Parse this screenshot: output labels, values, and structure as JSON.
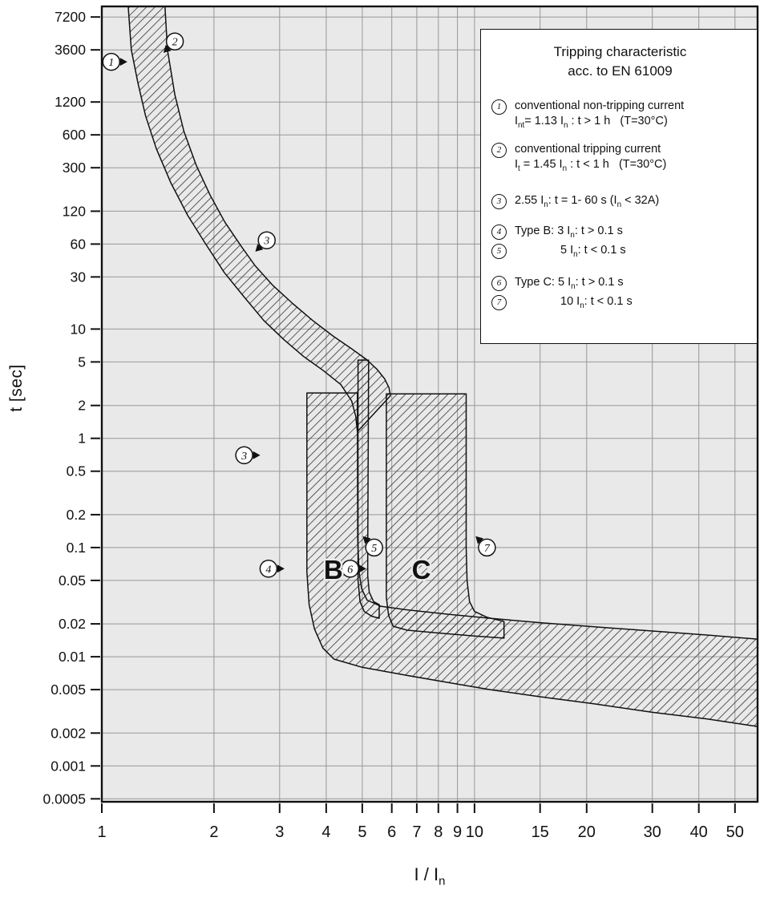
{
  "axes": {
    "y_label": "t [sec]",
    "x_label": "I / I~n~"
  },
  "legend": {
    "title_line1": "Tripping characteristic",
    "title_line2": "acc. to EN 61009",
    "items": [
      {
        "num": "1",
        "gap": 22,
        "lines": [
          "conventional non-tripping current",
          "I~nt~= 1.13 I~n~ : t > 1 h   (T=30°C)"
        ]
      },
      {
        "num": "2",
        "gap": 16,
        "lines": [
          "conventional tripping current",
          "I~t~ = 1.45 I~n~ : t < 1 h   (T=30°C)"
        ]
      },
      {
        "num": "3",
        "gap": 26,
        "lines": [
          "2.55 I~n~: t = 1- 60 s (I~n~ < 32A)"
        ]
      },
      {
        "num": "4",
        "gap": 18,
        "lines": [
          "Type B: 3 I~n~: t > 0.1 s"
        ]
      },
      {
        "num": "5",
        "gap": 4,
        "indent": true,
        "lines": [
          "5 I~n~: t < 0.1 s"
        ]
      },
      {
        "num": "6",
        "gap": 20,
        "lines": [
          "Type C: 5 I~n~: t > 0.1 s"
        ]
      },
      {
        "num": "7",
        "gap": 4,
        "indent": true,
        "lines": [
          "10 I~n~: t < 0.1 s"
        ]
      }
    ]
  },
  "chart_data": {
    "type": "area",
    "title": "Tripping characteristic acc. to EN 61009",
    "xlabel": "I / In",
    "ylabel": "t [sec]",
    "x_scale": "log",
    "y_scale": "log",
    "x_range": [
      1,
      57.5
    ],
    "y_range_top": 9000,
    "y_range_bottom": 0.00047,
    "x_ticks": [
      1,
      2,
      3,
      4,
      5,
      6,
      7,
      8,
      9,
      10,
      15,
      20,
      30,
      40,
      50
    ],
    "y_ticks": [
      7200,
      3600,
      1200,
      600,
      300,
      120,
      60,
      30,
      10,
      5,
      2,
      1,
      0.5,
      0.2,
      0.1,
      0.05,
      0.02,
      0.01,
      0.005,
      0.002,
      0.001,
      0.0005
    ],
    "colors": {
      "plot_bg": "#e9e9e9",
      "grid": "#979797",
      "frame": "#111111",
      "hatch": "#2a2a2a"
    },
    "bands": [
      {
        "name": "thermal-band",
        "points": [
          [
            1.17,
            12000
          ],
          [
            1.2,
            3600
          ],
          [
            1.25,
            1800
          ],
          [
            1.31,
            900
          ],
          [
            1.4,
            450
          ],
          [
            1.53,
            220
          ],
          [
            1.7,
            110
          ],
          [
            1.9,
            60
          ],
          [
            2.13,
            33
          ],
          [
            2.4,
            20
          ],
          [
            2.72,
            12
          ],
          [
            3.08,
            8
          ],
          [
            3.48,
            5.6
          ],
          [
            3.92,
            4.2
          ],
          [
            4.38,
            3.1
          ],
          [
            4.68,
            2.2
          ],
          [
            4.8,
            1.6
          ],
          [
            4.85,
            1.15
          ],
          [
            5.95,
            2.45
          ],
          [
            5.9,
            2.9
          ],
          [
            5.74,
            3.5
          ],
          [
            5.47,
            4.3
          ],
          [
            5.12,
            5.3
          ],
          [
            4.68,
            6.6
          ],
          [
            4.18,
            8.6
          ],
          [
            3.68,
            12
          ],
          [
            3.26,
            17
          ],
          [
            2.88,
            25
          ],
          [
            2.58,
            38
          ],
          [
            2.36,
            58
          ],
          [
            2.14,
            95
          ],
          [
            1.95,
            170
          ],
          [
            1.79,
            320
          ],
          [
            1.66,
            650
          ],
          [
            1.57,
            1400
          ],
          [
            1.5,
            3600
          ],
          [
            1.47,
            12000
          ]
        ]
      },
      {
        "name": "type-b-band",
        "points": [
          [
            3.55,
            2.6
          ],
          [
            3.55,
            0.06
          ],
          [
            3.6,
            0.03
          ],
          [
            3.72,
            0.018
          ],
          [
            3.92,
            0.012
          ],
          [
            4.2,
            0.0095
          ],
          [
            5.0,
            0.008
          ],
          [
            6.5,
            0.0068
          ],
          [
            8.5,
            0.0058
          ],
          [
            11,
            0.005
          ],
          [
            15,
            0.0043
          ],
          [
            21,
            0.0037
          ],
          [
            30,
            0.0031
          ],
          [
            42,
            0.0027
          ],
          [
            57.5,
            0.0023
          ],
          [
            57.5,
            0.0145
          ],
          [
            42,
            0.0158
          ],
          [
            30,
            0.0172
          ],
          [
            21,
            0.0188
          ],
          [
            15,
            0.0205
          ],
          [
            11,
            0.0225
          ],
          [
            8.5,
            0.0245
          ],
          [
            6.5,
            0.027
          ],
          [
            5.6,
            0.029
          ],
          [
            5.15,
            0.033
          ],
          [
            4.98,
            0.042
          ],
          [
            4.9,
            0.06
          ],
          [
            4.86,
            0.12
          ],
          [
            4.85,
            2.6
          ]
        ]
      },
      {
        "name": "five-in-limit-band",
        "points": [
          [
            4.87,
            5.2
          ],
          [
            4.87,
            0.05
          ],
          [
            4.93,
            0.032
          ],
          [
            5.06,
            0.026
          ],
          [
            5.3,
            0.0235
          ],
          [
            5.55,
            0.0225
          ],
          [
            5.55,
            0.03
          ],
          [
            5.36,
            0.032
          ],
          [
            5.22,
            0.039
          ],
          [
            5.17,
            0.055
          ],
          [
            5.17,
            0.09
          ],
          [
            5.2,
            5.2
          ]
        ]
      },
      {
        "name": "type-c-band",
        "points": [
          [
            5.8,
            2.55
          ],
          [
            5.8,
            0.035
          ],
          [
            5.88,
            0.024
          ],
          [
            6.05,
            0.019
          ],
          [
            6.6,
            0.0175
          ],
          [
            8,
            0.0165
          ],
          [
            10,
            0.0155
          ],
          [
            12,
            0.0148
          ],
          [
            12,
            0.021
          ],
          [
            10.8,
            0.023
          ],
          [
            10.0,
            0.026
          ],
          [
            9.7,
            0.032
          ],
          [
            9.55,
            0.05
          ],
          [
            9.5,
            0.1
          ],
          [
            9.5,
            2.55
          ]
        ]
      }
    ],
    "markers": [
      {
        "num": "1",
        "x": 1.06,
        "t": 2800,
        "dir": "e"
      },
      {
        "num": "2",
        "x": 1.57,
        "t": 4300,
        "dir": "sw"
      },
      {
        "num": "3",
        "x": 2.77,
        "t": 65,
        "dir": "sw"
      },
      {
        "num": "3",
        "x": 2.41,
        "t": 0.7,
        "dir": "e"
      },
      {
        "num": "4",
        "x": 2.8,
        "t": 0.064,
        "dir": "e"
      },
      {
        "num": "5",
        "x": 5.38,
        "t": 0.1,
        "dir": "nw"
      },
      {
        "num": "6",
        "x": 4.64,
        "t": 0.064,
        "dir": "e"
      },
      {
        "num": "7",
        "x": 10.8,
        "t": 0.1,
        "dir": "nw"
      }
    ],
    "curve_labels": [
      {
        "text": "B",
        "x": 4.18,
        "t": 0.062,
        "name": "type-b-label"
      },
      {
        "text": "C",
        "x": 7.2,
        "t": 0.062,
        "name": "type-c-label"
      }
    ]
  }
}
